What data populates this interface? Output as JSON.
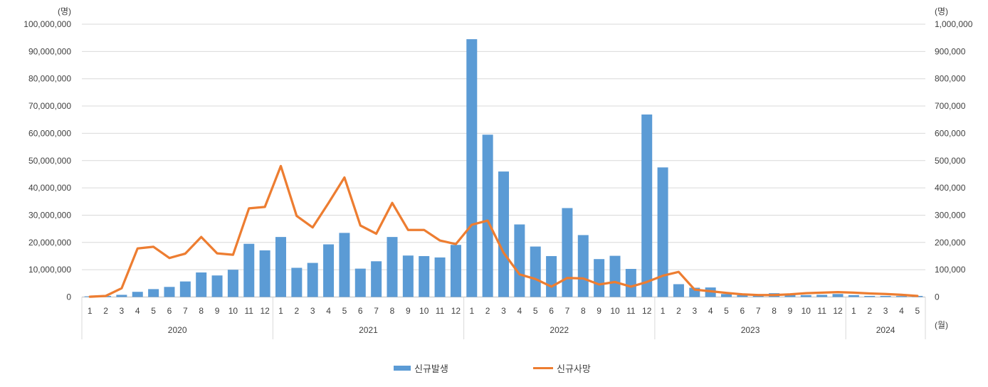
{
  "chart_data": {
    "type": "combo",
    "title": "",
    "grid": true,
    "legend_position": "bottom",
    "left_axis": {
      "unit": "(명)",
      "min": 0,
      "max": 100000000,
      "step": 10000000
    },
    "right_axis": {
      "unit": "(명)",
      "min": 0,
      "max": 1000000,
      "step": 100000
    },
    "x_axis": {
      "unit": "(월)",
      "groups": [
        {
          "year": "2020",
          "months": [
            "1",
            "2",
            "3",
            "4",
            "5",
            "6",
            "7",
            "8",
            "9",
            "10",
            "11",
            "12"
          ]
        },
        {
          "year": "2021",
          "months": [
            "1",
            "2",
            "3",
            "4",
            "5",
            "6",
            "7",
            "8",
            "9",
            "10",
            "11",
            "12"
          ]
        },
        {
          "year": "2022",
          "months": [
            "1",
            "2",
            "3",
            "4",
            "5",
            "6",
            "7",
            "8",
            "9",
            "10",
            "11",
            "12"
          ]
        },
        {
          "year": "2023",
          "months": [
            "1",
            "2",
            "3",
            "4",
            "5",
            "6",
            "7",
            "8",
            "9",
            "10",
            "11",
            "12"
          ]
        },
        {
          "year": "2024",
          "months": [
            "1",
            "2",
            "3",
            "4",
            "5"
          ]
        }
      ]
    },
    "series": [
      {
        "name": "신규발생",
        "type": "bar",
        "axis": "left",
        "color": "#5B9BD5",
        "values": [
          250000,
          400000,
          800000,
          1900000,
          2900000,
          3700000,
          5700000,
          9000000,
          7900000,
          10000000,
          19500000,
          17100000,
          22000000,
          10700000,
          12500000,
          19300000,
          23500000,
          10400000,
          13100000,
          22000000,
          15200000,
          15000000,
          14500000,
          19100000,
          94500000,
          59500000,
          46000000,
          26600000,
          18500000,
          15000000,
          32600000,
          22700000,
          13900000,
          15100000,
          10300000,
          66900000,
          47500000,
          4700000,
          3400000,
          3500000,
          1100000,
          700000,
          500000,
          1400000,
          800000,
          700000,
          800000,
          1100000,
          700000,
          400000,
          400000,
          350000,
          400000
        ]
      },
      {
        "name": "신규사망",
        "type": "line",
        "axis": "right",
        "color": "#ED7D31",
        "values": [
          1000,
          4000,
          32000,
          178000,
          184000,
          143000,
          159000,
          220000,
          160000,
          155000,
          325000,
          330000,
          480000,
          297000,
          255000,
          345000,
          438000,
          262000,
          232000,
          345000,
          246000,
          246000,
          207000,
          194000,
          265000,
          280000,
          162000,
          83000,
          66000,
          38000,
          70000,
          68000,
          46000,
          55000,
          38000,
          55000,
          78000,
          92000,
          27000,
          21000,
          15000,
          10000,
          7000,
          7000,
          10000,
          14000,
          16000,
          18000,
          16000,
          13000,
          11000,
          8000,
          4000
        ]
      }
    ],
    "colors": {
      "bar": "#5B9BD5",
      "line": "#ED7D31",
      "grid": "#D9D9D9",
      "axis_line": "#BFBFBF",
      "text": "#404040"
    }
  },
  "legend": {
    "items": [
      {
        "label": "신규발생",
        "swatch": "bar"
      },
      {
        "label": "신규사망",
        "swatch": "line"
      }
    ]
  }
}
